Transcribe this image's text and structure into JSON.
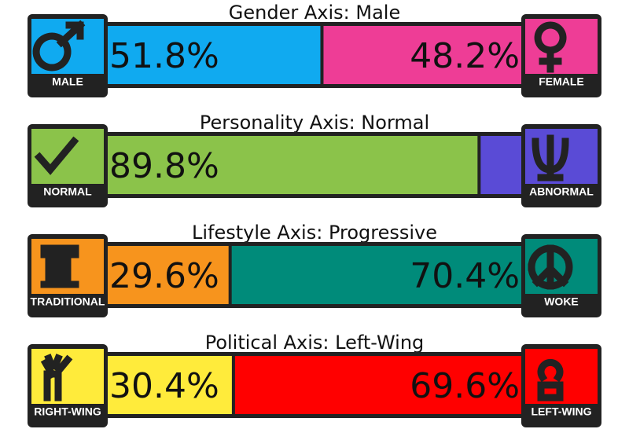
{
  "axes": [
    {
      "title": "Gender Axis: Male",
      "left": {
        "label": "MALE",
        "value": 51.8,
        "value_label": "51.8%",
        "color": "#10aaf0"
      },
      "right": {
        "label": "FEMALE",
        "value": 48.2,
        "value_label": "48.2%",
        "color": "#ee3d96"
      }
    },
    {
      "title": "Personality Axis: Normal",
      "left": {
        "label": "NORMAL",
        "value": 89.8,
        "value_label": "89.8%",
        "color": "#8bc34a"
      },
      "right": {
        "label": "ABNORMAL",
        "value": 10.2,
        "color": "#5a4bd6"
      }
    },
    {
      "title": "Lifestyle Axis: Progressive",
      "left": {
        "label": "TRADITIONAL",
        "value": 29.6,
        "value_label": "29.6%",
        "color": "#f7941d"
      },
      "right": {
        "label": "WOKE",
        "value": 70.4,
        "value_label": "70.4%",
        "color": "#008b7a"
      }
    },
    {
      "title": "Political Axis: Left-Wing",
      "left": {
        "label": "RIGHT-WING",
        "value": 30.4,
        "value_label": "30.4%",
        "color": "#ffeb3b"
      },
      "right": {
        "label": "LEFT-WING",
        "value": 69.6,
        "value_label": "69.6%",
        "color": "#ff0000"
      }
    }
  ]
}
